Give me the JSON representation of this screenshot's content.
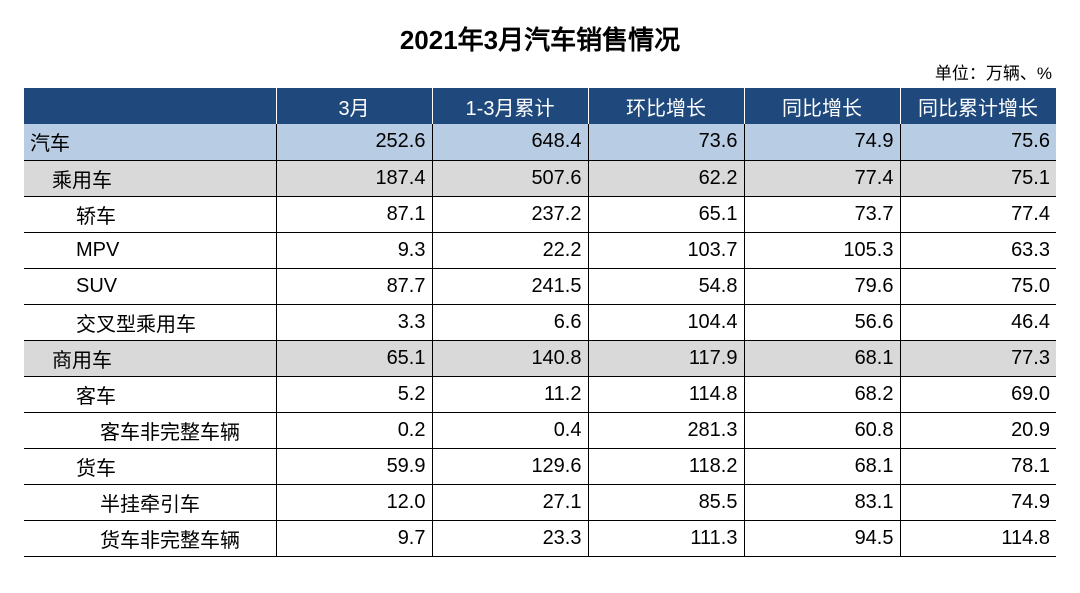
{
  "title": "2021年3月汽车销售情况",
  "unit": "单位：万辆、%",
  "columns": [
    "",
    "3月",
    "1-3月累计",
    "环比增长",
    "同比增长",
    "同比累计增长"
  ],
  "rows": [
    {
      "style": "hl",
      "indent": 0,
      "label": "汽车",
      "v": [
        "252.6",
        "648.4",
        "73.6",
        "74.9",
        "75.6"
      ]
    },
    {
      "style": "sub",
      "indent": 1,
      "label": "乘用车",
      "v": [
        "187.4",
        "507.6",
        "62.2",
        "77.4",
        "75.1"
      ]
    },
    {
      "style": "",
      "indent": 2,
      "label": "轿车",
      "v": [
        "87.1",
        "237.2",
        "65.1",
        "73.7",
        "77.4"
      ]
    },
    {
      "style": "",
      "indent": 2,
      "label": "MPV",
      "v": [
        "9.3",
        "22.2",
        "103.7",
        "105.3",
        "63.3"
      ]
    },
    {
      "style": "",
      "indent": 2,
      "label": "SUV",
      "v": [
        "87.7",
        "241.5",
        "54.8",
        "79.6",
        "75.0"
      ]
    },
    {
      "style": "",
      "indent": 2,
      "label": "交叉型乘用车",
      "v": [
        "3.3",
        "6.6",
        "104.4",
        "56.6",
        "46.4"
      ]
    },
    {
      "style": "sub",
      "indent": 1,
      "label": "商用车",
      "v": [
        "65.1",
        "140.8",
        "117.9",
        "68.1",
        "77.3"
      ]
    },
    {
      "style": "",
      "indent": 2,
      "label": "客车",
      "v": [
        "5.2",
        "11.2",
        "114.8",
        "68.2",
        "69.0"
      ]
    },
    {
      "style": "",
      "indent": 3,
      "label": "客车非完整车辆",
      "v": [
        "0.2",
        "0.4",
        "281.3",
        "60.8",
        "20.9"
      ]
    },
    {
      "style": "",
      "indent": 2,
      "label": "货车",
      "v": [
        "59.9",
        "129.6",
        "118.2",
        "68.1",
        "78.1"
      ]
    },
    {
      "style": "",
      "indent": 3,
      "label": "半挂牵引车",
      "v": [
        "12.0",
        "27.1",
        "85.5",
        "83.1",
        "74.9"
      ]
    },
    {
      "style": "",
      "indent": 3,
      "label": "货车非完整车辆",
      "v": [
        "9.7",
        "23.3",
        "111.3",
        "94.5",
        "114.8"
      ]
    }
  ]
}
